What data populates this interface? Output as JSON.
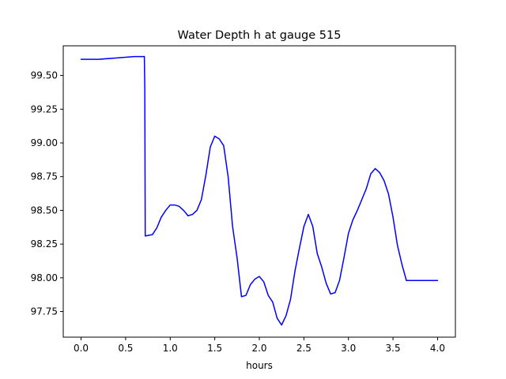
{
  "chart_data": {
    "type": "line",
    "title": "Water Depth h at gauge 515",
    "xlabel": "hours",
    "ylabel": "",
    "xlim": [
      -0.2,
      4.2
    ],
    "ylim": [
      97.56,
      99.72
    ],
    "xticks": [
      0.0,
      0.5,
      1.0,
      1.5,
      2.0,
      2.5,
      3.0,
      3.5,
      4.0
    ],
    "xtick_labels": [
      "0.0",
      "0.5",
      "1.0",
      "1.5",
      "2.0",
      "2.5",
      "3.0",
      "3.5",
      "4.0"
    ],
    "yticks": [
      97.75,
      98.0,
      98.25,
      98.5,
      98.75,
      99.0,
      99.25,
      99.5
    ],
    "ytick_labels": [
      "97.75",
      "98.00",
      "98.25",
      "98.50",
      "98.75",
      "99.00",
      "99.25",
      "99.50"
    ],
    "grid": false,
    "series": [
      {
        "color": "#0000ff",
        "x": [
          0.0,
          0.2,
          0.4,
          0.6,
          0.71,
          0.715,
          0.72,
          0.8,
          0.85,
          0.9,
          0.95,
          1.0,
          1.05,
          1.1,
          1.15,
          1.2,
          1.25,
          1.3,
          1.35,
          1.4,
          1.45,
          1.5,
          1.55,
          1.6,
          1.65,
          1.7,
          1.75,
          1.8,
          1.85,
          1.9,
          1.95,
          2.0,
          2.05,
          2.1,
          2.15,
          2.2,
          2.25,
          2.3,
          2.35,
          2.4,
          2.45,
          2.5,
          2.55,
          2.6,
          2.65,
          2.7,
          2.75,
          2.8,
          2.85,
          2.9,
          2.95,
          3.0,
          3.05,
          3.1,
          3.15,
          3.2,
          3.25,
          3.3,
          3.35,
          3.4,
          3.45,
          3.5,
          3.55,
          3.6,
          3.65,
          3.7,
          3.75,
          3.8,
          3.85,
          3.9,
          3.95,
          4.0
        ],
        "y": [
          99.62,
          99.62,
          99.63,
          99.64,
          99.64,
          99.4,
          98.31,
          98.32,
          98.37,
          98.45,
          98.5,
          98.54,
          98.54,
          98.53,
          98.5,
          98.46,
          98.47,
          98.5,
          98.58,
          98.76,
          98.97,
          99.05,
          99.03,
          98.98,
          98.75,
          98.38,
          98.15,
          97.86,
          97.87,
          97.95,
          97.99,
          98.01,
          97.97,
          97.87,
          97.82,
          97.7,
          97.65,
          97.72,
          97.84,
          98.05,
          98.22,
          98.38,
          98.47,
          98.38,
          98.18,
          98.08,
          97.96,
          97.88,
          97.89,
          97.98,
          98.15,
          98.33,
          98.43,
          98.5,
          98.58,
          98.66,
          98.77,
          98.81,
          98.78,
          98.72,
          98.62,
          98.45,
          98.24,
          98.1,
          97.98,
          97.98,
          97.98,
          97.98,
          97.98,
          97.98,
          97.98,
          97.98
        ]
      }
    ]
  }
}
